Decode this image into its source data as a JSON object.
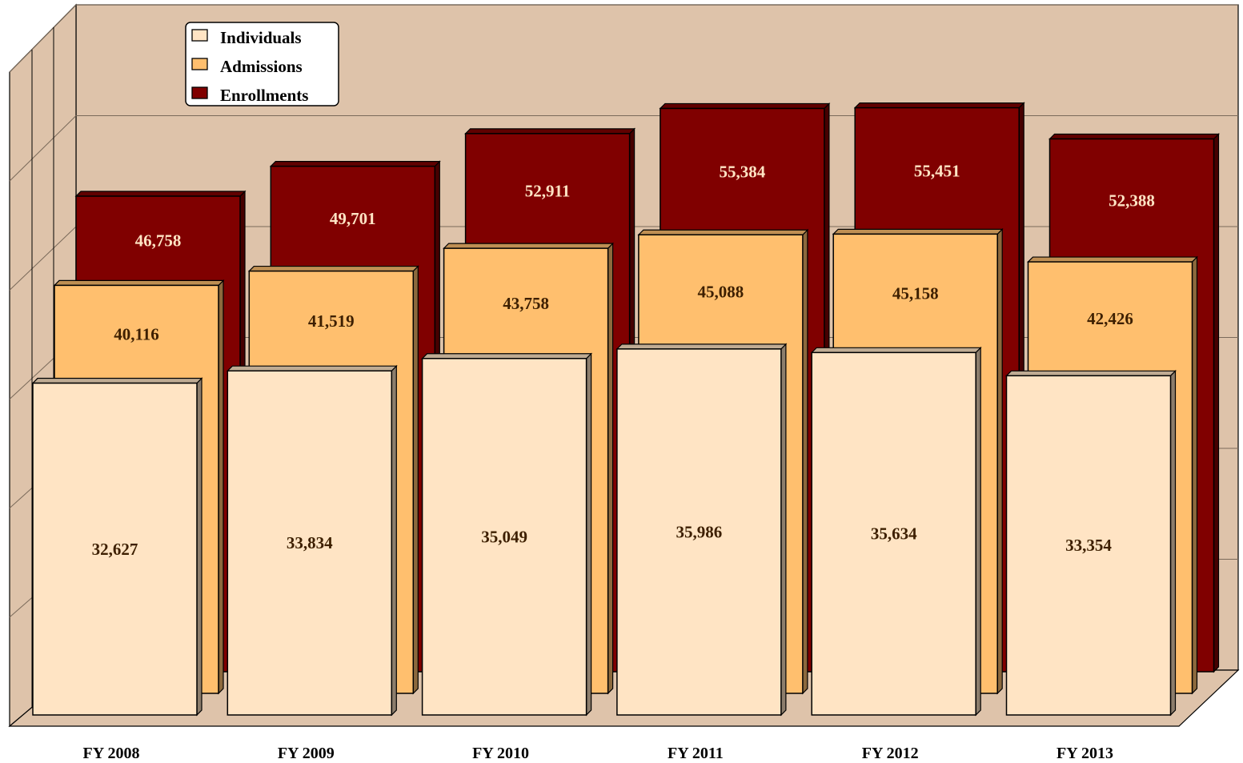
{
  "chart_data": {
    "type": "bar",
    "categories": [
      "FY 2008",
      "FY 2009",
      "FY 2010",
      "FY 2011",
      "FY 2012",
      "FY 2013"
    ],
    "series": [
      {
        "name": "Individuals",
        "values": [
          32627,
          33834,
          35049,
          35986,
          35634,
          33354
        ],
        "color": "#FFE4C4",
        "label_color": "#3D1F00"
      },
      {
        "name": "Admissions",
        "values": [
          40116,
          41519,
          43758,
          45088,
          45158,
          42426
        ],
        "color": "#FFBF6E",
        "label_color": "#3D1F00"
      },
      {
        "name": "Enrollments",
        "values": [
          46758,
          49701,
          52911,
          55384,
          55451,
          52388
        ],
        "color": "#800000",
        "label_color": "#FFE4C4"
      }
    ],
    "value_labels": [
      [
        "32,627",
        "33,834",
        "35,049",
        "35,986",
        "35,634",
        "33,354"
      ],
      [
        "40,116",
        "41,519",
        "43,758",
        "45,088",
        "45,158",
        "42,426"
      ],
      [
        "46,758",
        "49,701",
        "52,911",
        "55,384",
        "55,451",
        "52,388"
      ]
    ],
    "ylim": [
      0,
      64000
    ],
    "grid": true,
    "three_d": true,
    "legend_position": "top-left",
    "wall_color": "#DEC3AA",
    "floor_color": "#DEC3AA"
  }
}
